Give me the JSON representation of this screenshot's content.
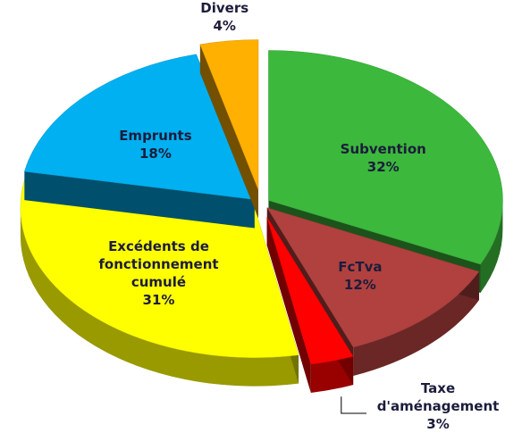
{
  "chart_data": {
    "type": "pie",
    "categories": [
      "Subvention",
      "FcTva",
      "Taxe d'aménagement",
      "Excédents de fonctionnement cumulé",
      "Emprunts",
      "Divers"
    ],
    "values": [
      32,
      12,
      3,
      31,
      18,
      4
    ],
    "value_labels": [
      "32%",
      "12%",
      "3%",
      "31%",
      "18%",
      "4%"
    ],
    "colors": [
      "#3cb83c",
      "#b0413e",
      "#ff0000",
      "#ffff00",
      "#00b0f0",
      "#ffb000"
    ]
  }
}
